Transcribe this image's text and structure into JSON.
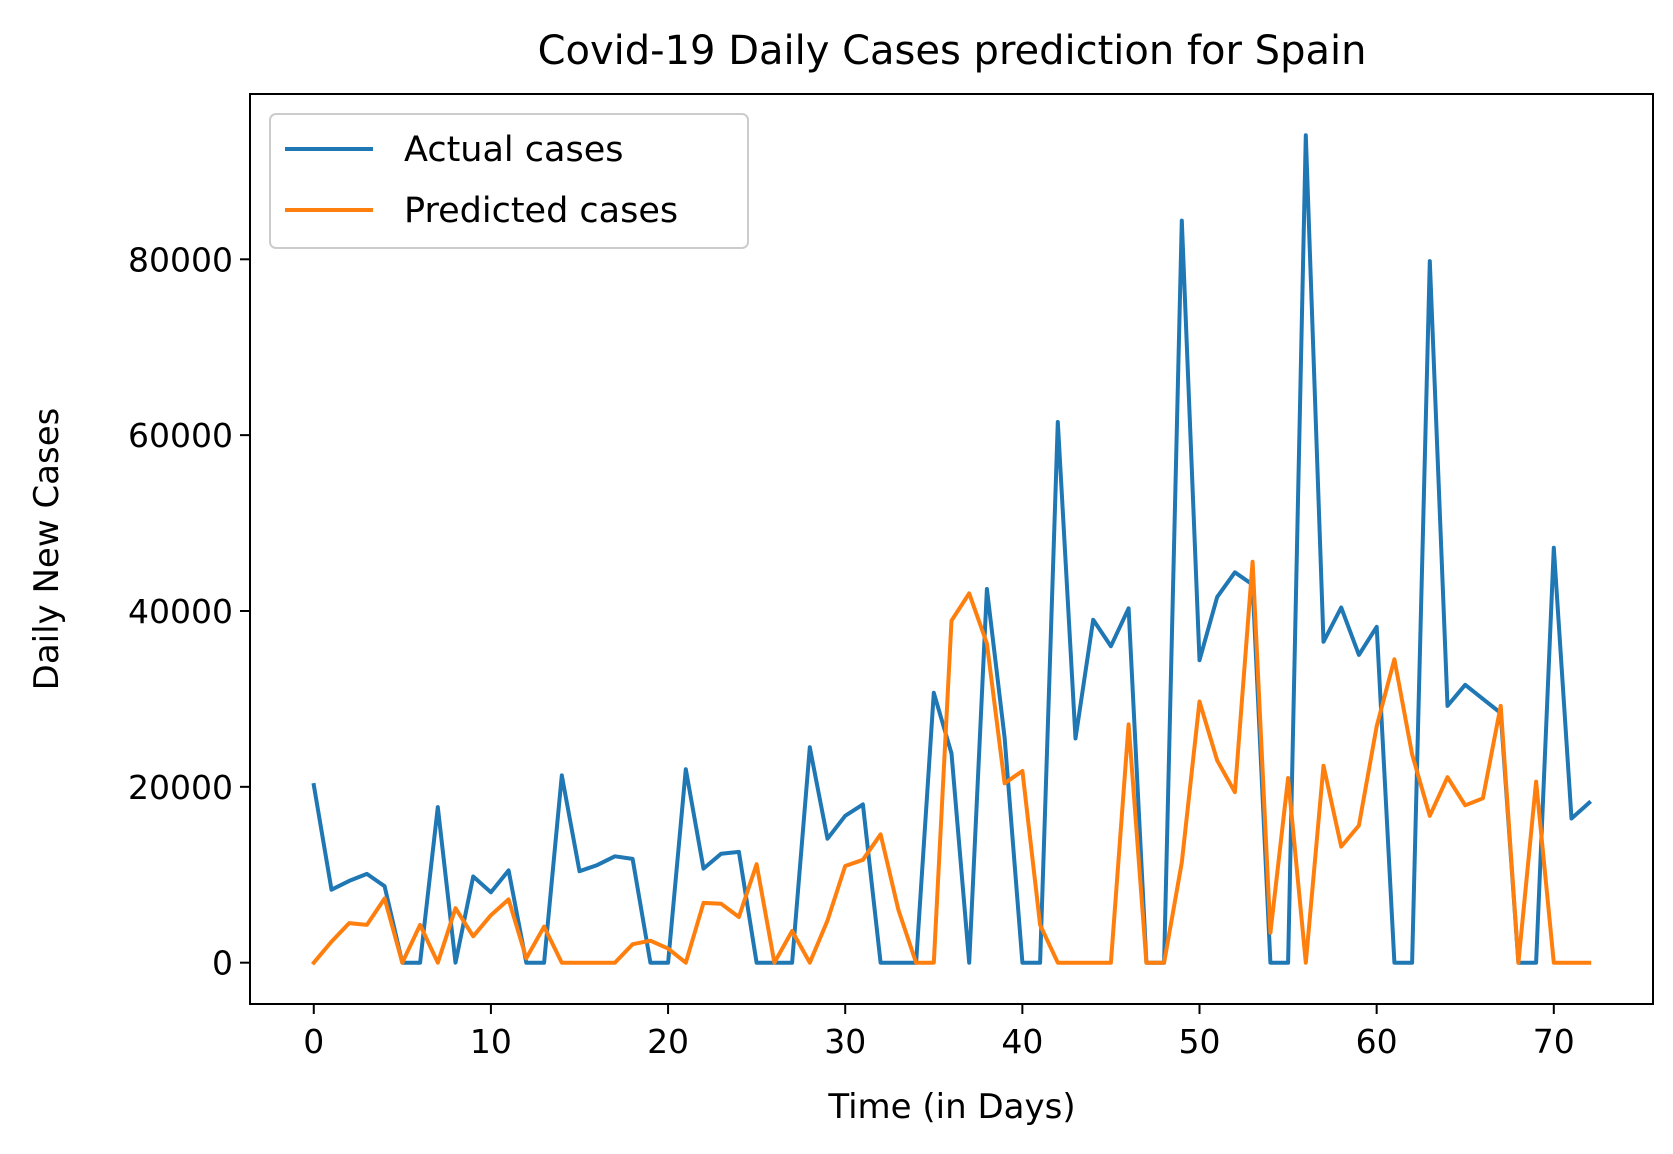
{
  "chart_data": {
    "type": "line",
    "title": "Covid-19 Daily Cases prediction for Spain",
    "xlabel": "Time (in Days)",
    "ylabel": "Daily New Cases",
    "xlim": [
      -3.6,
      75.6
    ],
    "ylim": [
      -4700,
      98800
    ],
    "xticks": [
      0,
      10,
      20,
      30,
      40,
      50,
      60,
      70
    ],
    "yticks": [
      0,
      20000,
      40000,
      60000,
      80000
    ],
    "grid": false,
    "legend_position": "top-left",
    "x": [
      0,
      1,
      2,
      3,
      4,
      5,
      6,
      7,
      8,
      9,
      10,
      11,
      12,
      13,
      14,
      15,
      16,
      17,
      18,
      19,
      20,
      21,
      22,
      23,
      24,
      25,
      26,
      27,
      28,
      29,
      30,
      31,
      32,
      33,
      34,
      35,
      36,
      37,
      38,
      39,
      40,
      41,
      42,
      43,
      44,
      45,
      46,
      47,
      48,
      49,
      50,
      51,
      52,
      53,
      54,
      55,
      56,
      57,
      58,
      59,
      60,
      61,
      62,
      63,
      64,
      65,
      66,
      67,
      68,
      69,
      70,
      71,
      72
    ],
    "series": [
      {
        "name": "Actual cases",
        "color": "#1f77b4",
        "values": [
          20200,
          8300,
          9300,
          10100,
          8700,
          0,
          0,
          17700,
          0,
          9800,
          8000,
          10500,
          0,
          0,
          21300,
          10400,
          11100,
          12100,
          11800,
          0,
          0,
          22000,
          10700,
          12400,
          12600,
          0,
          0,
          0,
          24500,
          14100,
          16700,
          18000,
          0,
          0,
          0,
          30700,
          23800,
          0,
          42500,
          25600,
          0,
          0,
          61500,
          25500,
          39000,
          36000,
          40300,
          0,
          0,
          84400,
          34400,
          41600,
          44400,
          43000,
          0,
          0,
          94100,
          36500,
          40400,
          35000,
          38200,
          0,
          0,
          79800,
          29200,
          31600,
          30000,
          28400,
          0,
          0,
          47200,
          16400,
          18200
        ]
      },
      {
        "name": "Predicted cases",
        "color": "#ff7f0e",
        "values": [
          0,
          2400,
          4500,
          4300,
          7300,
          0,
          4300,
          0,
          6200,
          3000,
          5400,
          7200,
          500,
          4100,
          0,
          0,
          0,
          0,
          2100,
          2500,
          1600,
          0,
          6800,
          6700,
          5200,
          11200,
          0,
          3600,
          0,
          4800,
          11000,
          11700,
          14600,
          6000,
          0,
          0,
          38900,
          42000,
          36300,
          20400,
          21800,
          4300,
          0,
          0,
          0,
          0,
          27100,
          0,
          0,
          11400,
          29700,
          23000,
          19400,
          45600,
          3400,
          21000,
          0,
          22400,
          13200,
          15600,
          26900,
          34500,
          23700,
          16700,
          21100,
          17900,
          18700,
          29200,
          0,
          20600,
          0,
          0,
          0
        ]
      }
    ]
  }
}
